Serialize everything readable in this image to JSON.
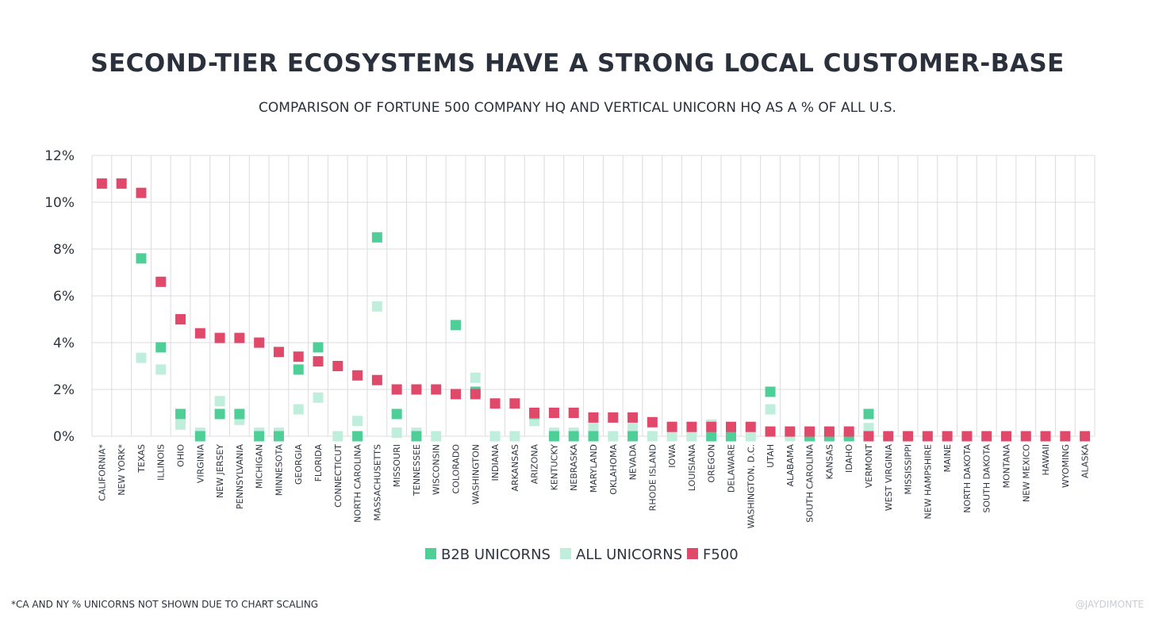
{
  "chart_data": {
    "type": "scatter",
    "title": "SECOND-TIER ECOSYSTEMS HAVE A STRONG LOCAL CUSTOMER-BASE",
    "subtitle": "COMPARISON OF FORTUNE 500 COMPANY HQ AND VERTICAL UNICORN HQ AS A % OF ALL U.S.",
    "xlabel": "",
    "ylabel": "",
    "ylim": [
      0,
      12
    ],
    "yticks": [
      "0%",
      "2%",
      "4%",
      "6%",
      "8%",
      "10%",
      "12%"
    ],
    "grid": true,
    "legend_position": "bottom",
    "categories": [
      "CALIFORNIA*",
      "NEW YORK*",
      "TEXAS",
      "ILLINOIS",
      "OHIO",
      "VIRGINIA",
      "NEW JERSEY",
      "PENNSYLVANIA",
      "MICHIGAN",
      "MINNESOTA",
      "GEORGIA",
      "FLORIDA",
      "CONNECTICUT",
      "NORTH CAROLINA",
      "MASSACHUSETTS",
      "MISSOURI",
      "TENNESSEE",
      "WISCONSIN",
      "COLORADO",
      "WASHINGTON",
      "INDIANA",
      "ARKANSAS",
      "ARIZONA",
      "KENTUCKY",
      "NEBRASKA",
      "MARYLAND",
      "OKLAHOMA",
      "NEVADA",
      "RHODE ISLAND",
      "IOWA",
      "LOUISIANA",
      "OREGON",
      "DELAWARE",
      "WASHINGTON, D.C.",
      "UTAH",
      "ALABAMA",
      "SOUTH CAROLINA",
      "KANSAS",
      "IDAHO",
      "VERMONT",
      "WEST VIRGINIA",
      "MISSISSIPPI",
      "NEW HAMPSHIRE",
      "MAINE",
      "NORTH DAKOTA",
      "SOUTH DAKOTA",
      "MONTANA",
      "NEW MEXICO",
      "HAWAII",
      "WYOMING",
      "ALASKA"
    ],
    "series": [
      {
        "name": "B2B UNICORNS",
        "color": "#4fcf98",
        "values": [
          null,
          null,
          7.6,
          3.8,
          0.95,
          0,
          0.95,
          0.95,
          0,
          0,
          2.85,
          3.8,
          null,
          0,
          8.5,
          0.95,
          0,
          null,
          4.75,
          1.9,
          null,
          null,
          0.95,
          0,
          0,
          0,
          null,
          0,
          null,
          null,
          null,
          0,
          0,
          null,
          1.9,
          null,
          0,
          0,
          0,
          0.95,
          null,
          null,
          null,
          null,
          null,
          null,
          null,
          null,
          null,
          null,
          null
        ]
      },
      {
        "name": "ALL UNICORNS",
        "color": "#bfeedd",
        "values": [
          null,
          null,
          3.35,
          2.85,
          0.5,
          0.15,
          1.5,
          0.7,
          0.15,
          0.15,
          1.15,
          1.65,
          0,
          0.65,
          5.55,
          0.15,
          0.15,
          0,
          null,
          2.5,
          0,
          0,
          0.65,
          0.15,
          0.15,
          0.35,
          0,
          0.35,
          0,
          0,
          0,
          0.5,
          0,
          0,
          1.15,
          0,
          0,
          0,
          0,
          0.35,
          null,
          null,
          null,
          null,
          null,
          null,
          null,
          null,
          null,
          null,
          null
        ]
      },
      {
        "name": "F500",
        "color": "#e0496a",
        "values": [
          10.8,
          10.8,
          10.4,
          6.6,
          5.0,
          4.4,
          4.2,
          4.2,
          4.0,
          3.6,
          3.4,
          3.2,
          3.0,
          2.6,
          2.4,
          2.0,
          2.0,
          2.0,
          1.8,
          1.8,
          1.4,
          1.4,
          1.0,
          1.0,
          1.0,
          0.8,
          0.8,
          0.8,
          0.6,
          0.4,
          0.4,
          0.4,
          0.4,
          0.4,
          0.2,
          0.2,
          0.2,
          0.2,
          0.2,
          0,
          0,
          0,
          0,
          0,
          0,
          0,
          0,
          0,
          0,
          0,
          0
        ]
      }
    ]
  },
  "footnote": "*CA AND NY % UNICORNS NOT SHOWN DUE TO CHART SCALING",
  "credit": "@JAYDIMONTE"
}
